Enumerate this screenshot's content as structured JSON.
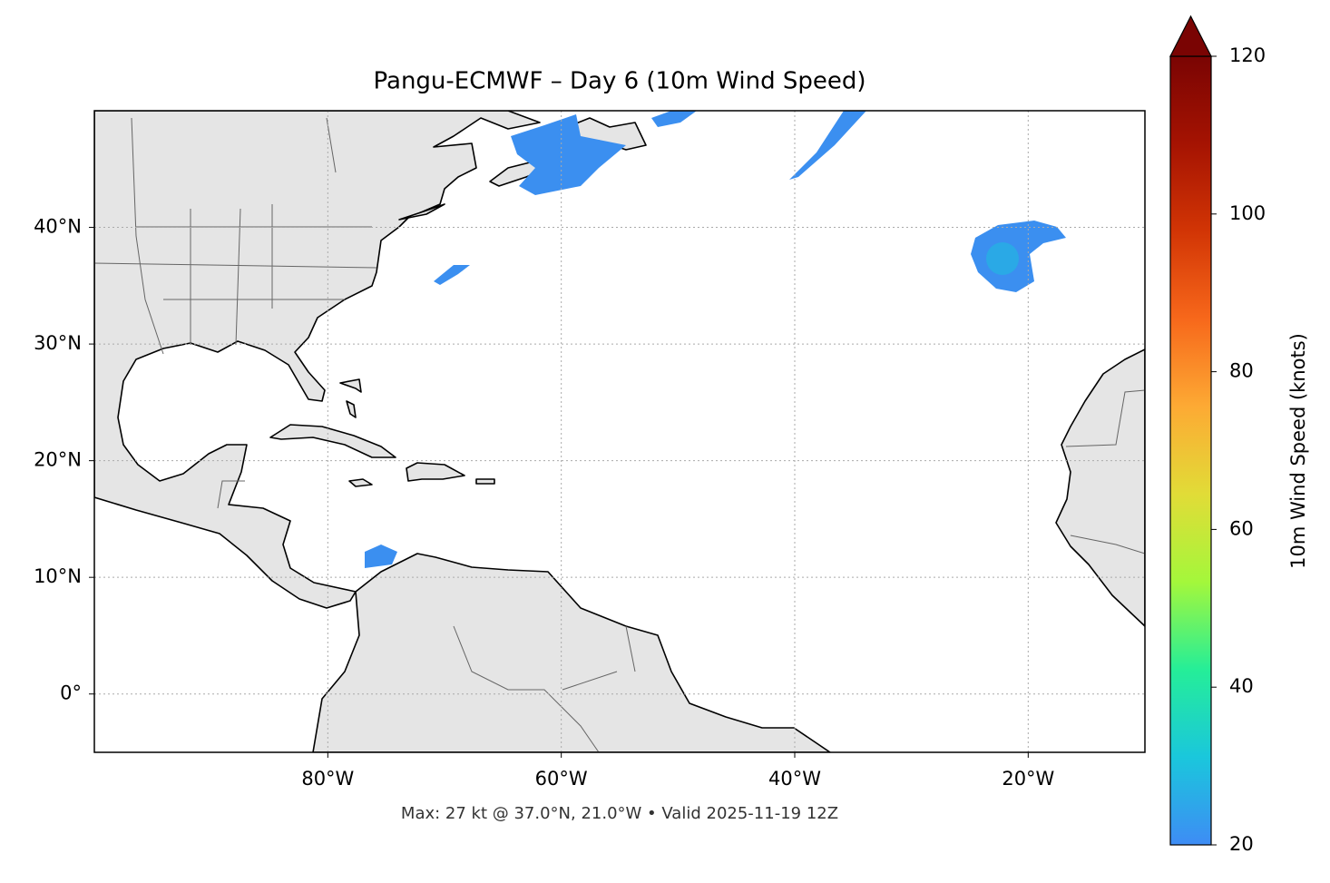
{
  "chart_data": {
    "type": "map",
    "title": "Pangu-ECMWF – Day 6 (10m Wind Speed)",
    "xlim": [
      -100,
      -10
    ],
    "ylim": [
      -5,
      50
    ],
    "xticks": [
      {
        "value": -80,
        "label": "80°W"
      },
      {
        "value": -60,
        "label": "60°W"
      },
      {
        "value": -40,
        "label": "40°W"
      },
      {
        "value": -20,
        "label": "20°W"
      }
    ],
    "yticks": [
      {
        "value": 0,
        "label": "0°"
      },
      {
        "value": 10,
        "label": "10°N"
      },
      {
        "value": 20,
        "label": "20°N"
      },
      {
        "value": 30,
        "label": "30°N"
      },
      {
        "value": 40,
        "label": "40°N"
      }
    ],
    "grid": true,
    "colorbar": {
      "label": "10m Wind Speed (knots)",
      "lim": [
        20,
        120
      ],
      "ticks": [
        20,
        40,
        60,
        80,
        100,
        120
      ],
      "colors": [
        "#3e8cf5",
        "#1ac7dc",
        "#25ee98",
        "#a4f73b",
        "#e1dc37",
        "#fdaa34",
        "#f7681b",
        "#d23505",
        "#a51302",
        "#7a0403"
      ],
      "extend": "max"
    },
    "annotation": "Max: 27 kt @ 37.0°N, 21.0°W • Valid 2025-11-19 12Z"
  }
}
